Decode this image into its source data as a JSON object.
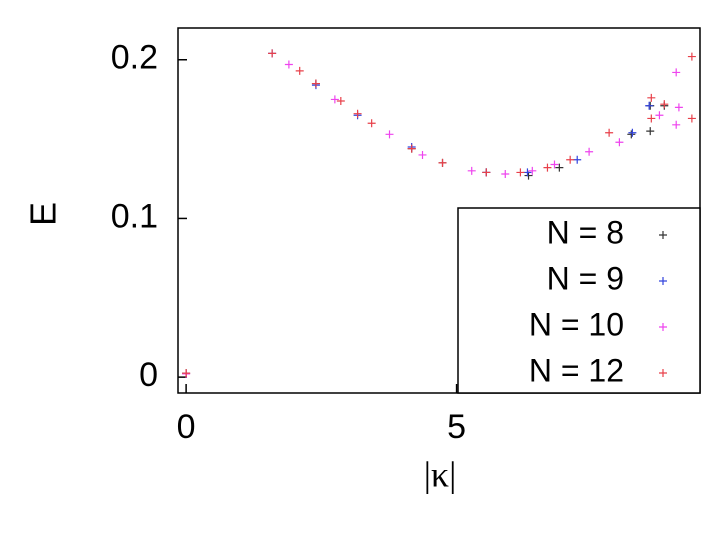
{
  "chart_data": {
    "type": "scatter",
    "xlabel": "|κ|",
    "ylabel": "E",
    "xlim": [
      -0.15,
      9.5
    ],
    "ylim": [
      -0.01,
      0.22
    ],
    "xticks": [
      0,
      5
    ],
    "yticks": [
      0,
      {
        "value": 0.1,
        "label": "0.1"
      },
      {
        "value": 0.2,
        "label": "0.2"
      }
    ],
    "legend_position": "lower right",
    "series": [
      {
        "name": "N = 8",
        "color": "#333333",
        "x": [
          0,
          2.4,
          4.17,
          4.74,
          5.55,
          6.33,
          6.9,
          8.23,
          8.58,
          8.84,
          8.58
        ],
        "values": [
          0.0025,
          0.185,
          0.144,
          0.135,
          0.129,
          0.127,
          0.132,
          0.153,
          0.171,
          0.171,
          0.155
        ]
      },
      {
        "name": "N = 9",
        "color": "#3344dd",
        "x": [
          1.59,
          2.4,
          3.17,
          4.17,
          5.55,
          6.31,
          7.23,
          8.25,
          8.56
        ],
        "values": [
          0.204,
          0.184,
          0.165,
          0.145,
          0.129,
          0.129,
          0.137,
          0.154,
          0.171
        ]
      },
      {
        "name": "N = 10",
        "color": "#ee44ee",
        "x": [
          0,
          1.9,
          2.75,
          3.76,
          4.37,
          5.28,
          5.9,
          6.4,
          6.81,
          7.45,
          8.01,
          8.75,
          9.06,
          9.11,
          9.06
        ],
        "values": [
          0.002,
          0.197,
          0.175,
          0.153,
          0.14,
          0.13,
          0.128,
          0.13,
          0.134,
          0.142,
          0.148,
          0.165,
          0.192,
          0.17,
          0.159
        ]
      },
      {
        "name": "N = 12",
        "color": "#e8404a",
        "x": [
          0,
          1.59,
          2.1,
          2.4,
          2.86,
          3.17,
          3.43,
          4.17,
          4.74,
          5.55,
          6.18,
          6.68,
          7.1,
          7.82,
          8.6,
          8.84,
          9.35,
          9.35,
          8.6
        ],
        "values": [
          0.0025,
          0.204,
          0.193,
          0.185,
          0.174,
          0.166,
          0.16,
          0.144,
          0.135,
          0.129,
          0.129,
          0.132,
          0.137,
          0.154,
          0.176,
          0.172,
          0.202,
          0.163,
          0.163
        ]
      }
    ]
  }
}
